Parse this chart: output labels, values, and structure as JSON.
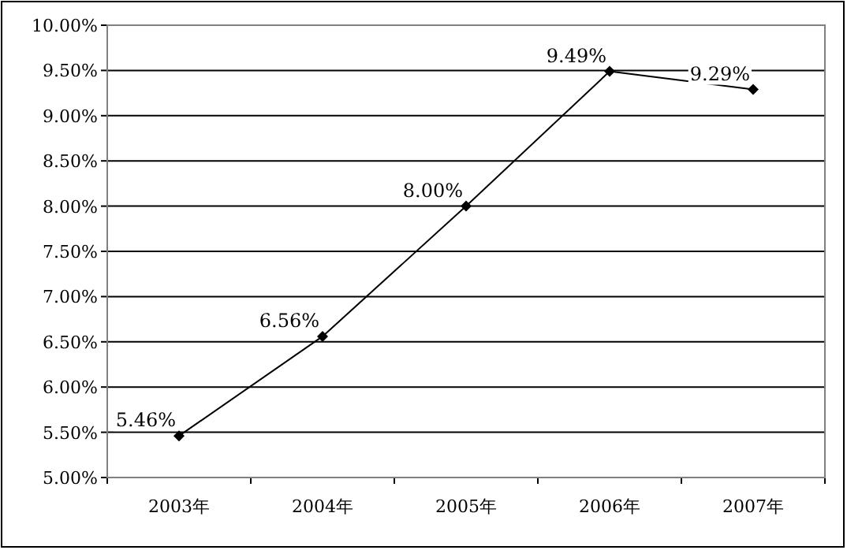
{
  "chart_data": {
    "type": "line",
    "categories": [
      "2003年",
      "2004年",
      "2005年",
      "2006年",
      "2007年"
    ],
    "values": [
      5.46,
      6.56,
      8.0,
      9.49,
      9.29
    ],
    "value_labels": [
      "5.46%",
      "6.56%",
      "8.00%",
      "9.49%",
      "9.29%"
    ],
    "color": "#000000",
    "marker": "diamond",
    "grid": "y",
    "ylim": [
      5,
      10
    ],
    "yticks": [
      {
        "value": 5,
        "label": "5.00%"
      },
      {
        "value": 5.5,
        "label": "5.50%"
      },
      {
        "value": 6,
        "label": "6.00%"
      },
      {
        "value": 6.5,
        "label": "6.50%"
      },
      {
        "value": 7,
        "label": "7.00%"
      },
      {
        "value": 7.5,
        "label": "7.50%"
      },
      {
        "value": 8,
        "label": "8.00%"
      },
      {
        "value": 8.5,
        "label": "8.50%"
      },
      {
        "value": 9,
        "label": "9.00%"
      },
      {
        "value": 9.5,
        "label": "9.50%"
      },
      {
        "value": 10,
        "label": "10.00%"
      }
    ]
  }
}
